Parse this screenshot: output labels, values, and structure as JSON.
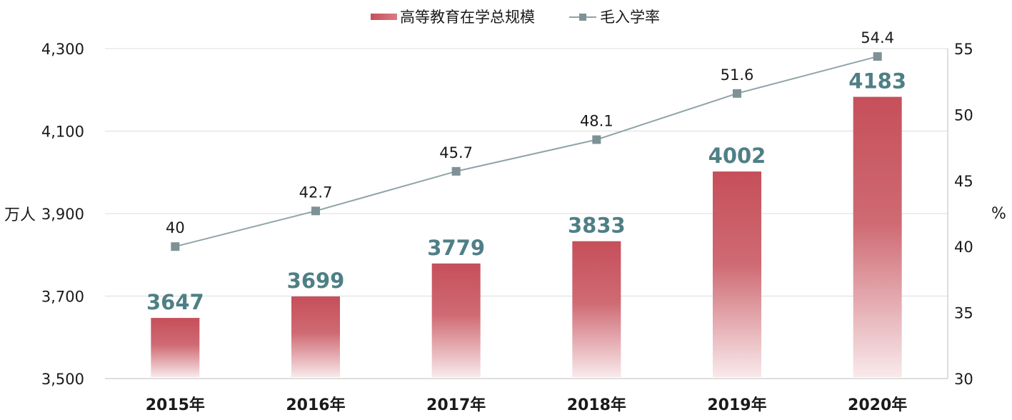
{
  "chart_data": {
    "type": "bar",
    "categories": [
      "2015年",
      "2016年",
      "2017年",
      "2018年",
      "2019年",
      "2020年"
    ],
    "series": [
      {
        "name": "高等教育在学总规模",
        "type": "bar",
        "axis": "left",
        "values": [
          3647,
          3699,
          3779,
          3833,
          4002,
          4183
        ],
        "color": "#c9545e"
      },
      {
        "name": "毛入学率",
        "type": "line",
        "axis": "right",
        "values": [
          40,
          42.7,
          45.7,
          48.1,
          51.6,
          54.4
        ],
        "color": "#8fa4a8"
      }
    ],
    "ylabel": "万人",
    "y2label": "%",
    "ylim": [
      3500,
      4300
    ],
    "yticks": [
      3500,
      3700,
      3900,
      4100,
      4300
    ],
    "ytick_labels": [
      "3,500",
      "3,700",
      "3,900",
      "4,100",
      "4,300"
    ],
    "y2lim": [
      30,
      55
    ],
    "y2ticks": [
      30,
      35,
      40,
      45,
      50,
      55
    ],
    "y2tick_labels": [
      "30",
      "35",
      "40",
      "45",
      "50",
      "55"
    ],
    "grid": true,
    "legend": "top-center",
    "bar_label_color": "#4f7f86",
    "line_marker_color": "#7e9296"
  }
}
